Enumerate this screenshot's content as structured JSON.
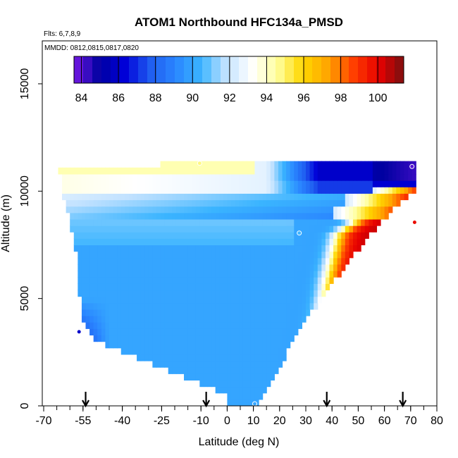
{
  "chart_data": {
    "type": "heatmap",
    "title": "ATOM1 Northbound HFC134a_PMSD",
    "annotations": {
      "flights": "Flts: 6,7,8,9",
      "dates": "MMDD: 0812,0815,0817,0820"
    },
    "xlabel": "Latitude (deg N)",
    "ylabel": "Altitude (m)",
    "xlim": [
      -70,
      80
    ],
    "ylim": [
      0,
      17000
    ],
    "x_ticks": [
      "-70",
      "-55",
      "-40",
      "-25",
      "-10",
      "0",
      "10",
      "20",
      "30",
      "40",
      "50",
      "60",
      "70",
      "80"
    ],
    "x_tick_values": [
      -70,
      -55,
      -40,
      -25,
      -10,
      0,
      10,
      20,
      30,
      40,
      50,
      60,
      70,
      80
    ],
    "y_ticks": [
      "0",
      "5000",
      "10000",
      "15000"
    ],
    "y_tick_values": [
      0,
      5000,
      10000,
      15000
    ],
    "colorbar": {
      "range": [
        83.6,
        101.4
      ],
      "ticks": [
        "84",
        "86",
        "88",
        "90",
        "92",
        "94",
        "96",
        "98",
        "100"
      ],
      "tick_values": [
        84,
        86,
        88,
        90,
        92,
        94,
        96,
        98,
        100
      ]
    },
    "arrow_latitudes": [
      -54,
      -8,
      38,
      67
    ],
    "profile_points": [
      {
        "lat": -56.5,
        "alt": 3450,
        "value": 86.0
      },
      {
        "lat": -10.5,
        "alt": 11300,
        "value": 94.8
      },
      {
        "lat": 10.5,
        "alt": 100,
        "value": 90.0
      },
      {
        "lat": 27.5,
        "alt": 8050,
        "value": 90.5
      },
      {
        "lat": 70.5,
        "alt": 11150,
        "value": 84.0
      },
      {
        "lat": 71.5,
        "alt": 8550,
        "value": 99.8
      }
    ],
    "color_scale": [
      "#7a1ae8",
      "#0000a0",
      "#0000d8",
      "#1f5cf0",
      "#2a86ff",
      "#3ab4ff",
      "#c2e2ff",
      "#ffffff",
      "#ffffa0",
      "#ffd700",
      "#ffa500",
      "#ff4000",
      "#e60000",
      "#7a1010"
    ]
  }
}
